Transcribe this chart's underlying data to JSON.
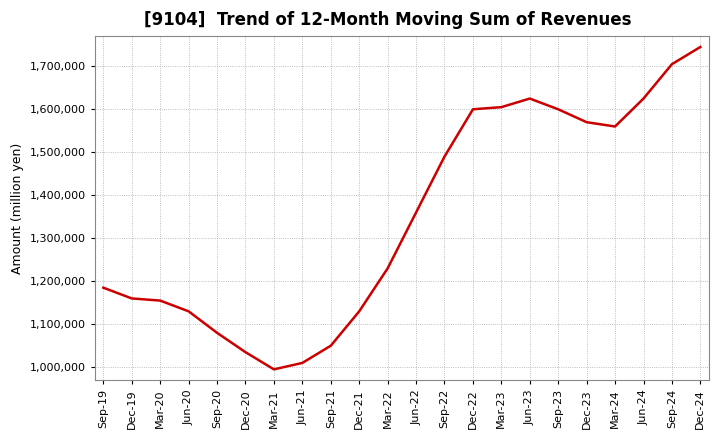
{
  "title": "[9104]  Trend of 12-Month Moving Sum of Revenues",
  "ylabel": "Amount (million yen)",
  "line_color": "#cc0000",
  "background_color": "#ffffff",
  "plot_background": "#ffffff",
  "grid_color": "#aaaaaa",
  "title_fontsize": 12,
  "axis_fontsize": 9,
  "tick_fontsize": 8,
  "ylim": [
    970000,
    1770000
  ],
  "yticks": [
    1000000,
    1100000,
    1200000,
    1300000,
    1400000,
    1500000,
    1600000,
    1700000
  ],
  "labels": [
    "Sep-19",
    "Dec-19",
    "Mar-20",
    "Jun-20",
    "Sep-20",
    "Dec-20",
    "Mar-21",
    "Jun-21",
    "Sep-21",
    "Dec-21",
    "Mar-22",
    "Jun-22",
    "Sep-22",
    "Dec-22",
    "Mar-23",
    "Jun-23",
    "Sep-23",
    "Dec-23",
    "Mar-24",
    "Jun-24",
    "Sep-24",
    "Dec-24"
  ],
  "values": [
    1185000,
    1160000,
    1155000,
    1130000,
    1080000,
    1035000,
    995000,
    1010000,
    1050000,
    1130000,
    1230000,
    1360000,
    1490000,
    1600000,
    1605000,
    1625000,
    1600000,
    1570000,
    1560000,
    1625000,
    1705000,
    1745000
  ]
}
